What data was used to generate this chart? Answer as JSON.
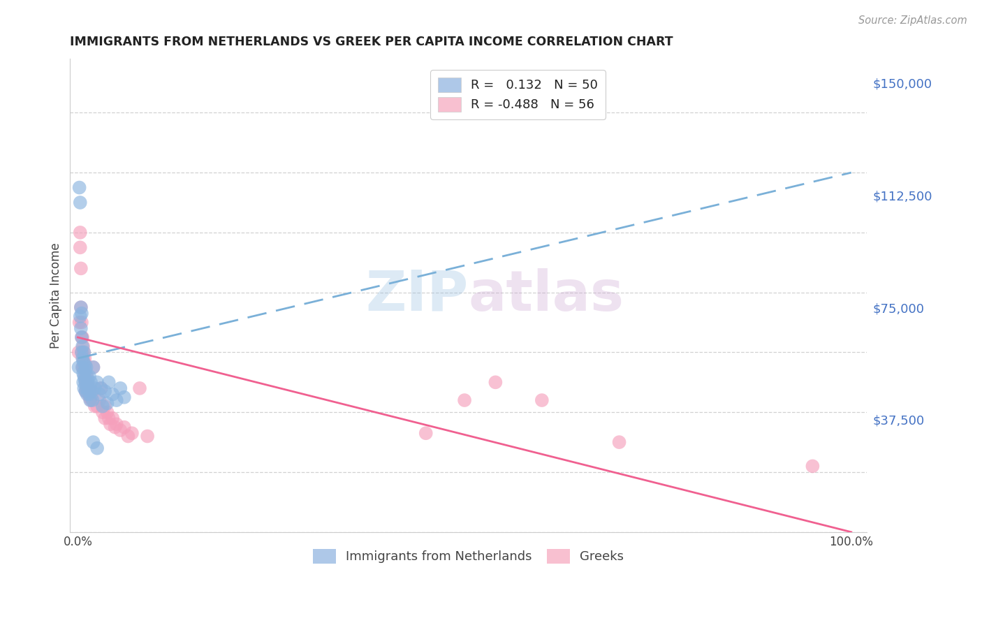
{
  "title": "IMMIGRANTS FROM NETHERLANDS VS GREEK PER CAPITA INCOME CORRELATION CHART",
  "source": "Source: ZipAtlas.com",
  "ylabel": "Per Capita Income",
  "watermark": "ZIPatlas",
  "series1_color": "#8ab4e0",
  "series2_color": "#f5a0bc",
  "line1_color": "#7ab0d8",
  "line2_color": "#f06090",
  "background": "#ffffff",
  "grid_color": "#cccccc",
  "blue_dots_x": [
    0.001,
    0.002,
    0.003,
    0.003,
    0.004,
    0.004,
    0.005,
    0.005,
    0.005,
    0.006,
    0.006,
    0.006,
    0.007,
    0.007,
    0.007,
    0.008,
    0.008,
    0.008,
    0.009,
    0.009,
    0.01,
    0.01,
    0.01,
    0.011,
    0.011,
    0.012,
    0.012,
    0.013,
    0.014,
    0.015,
    0.015,
    0.016,
    0.017,
    0.018,
    0.019,
    0.02,
    0.022,
    0.025,
    0.028,
    0.03,
    0.032,
    0.035,
    0.038,
    0.04,
    0.045,
    0.05,
    0.055,
    0.06,
    0.02,
    0.025
  ],
  "blue_dots_y": [
    55000,
    115000,
    110000,
    72000,
    75000,
    68000,
    73000,
    65000,
    60000,
    62000,
    58000,
    55000,
    57000,
    53000,
    50000,
    52000,
    48000,
    60000,
    56000,
    51000,
    54000,
    50000,
    47000,
    55000,
    48000,
    52000,
    46000,
    50000,
    48000,
    46000,
    52000,
    44000,
    50000,
    47000,
    44000,
    55000,
    48000,
    50000,
    46000,
    48000,
    42000,
    47000,
    43000,
    50000,
    46000,
    44000,
    48000,
    45000,
    30000,
    28000
  ],
  "pink_dots_x": [
    0.001,
    0.002,
    0.003,
    0.003,
    0.004,
    0.004,
    0.005,
    0.005,
    0.005,
    0.006,
    0.006,
    0.006,
    0.007,
    0.007,
    0.008,
    0.008,
    0.009,
    0.009,
    0.01,
    0.01,
    0.01,
    0.011,
    0.011,
    0.012,
    0.013,
    0.014,
    0.015,
    0.016,
    0.017,
    0.018,
    0.02,
    0.022,
    0.025,
    0.028,
    0.03,
    0.032,
    0.035,
    0.035,
    0.038,
    0.04,
    0.042,
    0.045,
    0.048,
    0.05,
    0.055,
    0.06,
    0.065,
    0.07,
    0.08,
    0.09,
    0.45,
    0.5,
    0.54,
    0.6,
    0.7,
    0.95
  ],
  "pink_dots_y": [
    60000,
    70000,
    100000,
    95000,
    88000,
    75000,
    70000,
    65000,
    60000,
    65000,
    60000,
    55000,
    62000,
    58000,
    60000,
    55000,
    58000,
    52000,
    56000,
    50000,
    47000,
    52000,
    48000,
    50000,
    48000,
    46000,
    45000,
    48000,
    44000,
    46000,
    55000,
    42000,
    42000,
    44000,
    48000,
    40000,
    42000,
    38000,
    40000,
    38000,
    36000,
    38000,
    35000,
    36000,
    34000,
    35000,
    32000,
    33000,
    48000,
    32000,
    33000,
    44000,
    50000,
    44000,
    30000,
    22000
  ],
  "xlim_min": -0.01,
  "xlim_max": 1.02,
  "ylim_min": 0,
  "ylim_max": 158000,
  "yticks": [
    0,
    37500,
    75000,
    112500,
    150000
  ],
  "ytick_labels": [
    "",
    "$37,500",
    "$75,000",
    "$112,500",
    "$150,000"
  ],
  "xtick_positions": [
    0.0,
    0.1,
    0.2,
    0.3,
    0.4,
    0.5,
    0.6,
    0.7,
    0.8,
    0.9,
    1.0
  ],
  "line1_x": [
    0.0,
    1.0
  ],
  "line1_y": [
    58000,
    120000
  ],
  "line2_x": [
    0.0,
    1.0
  ],
  "line2_y": [
    65000,
    0
  ]
}
